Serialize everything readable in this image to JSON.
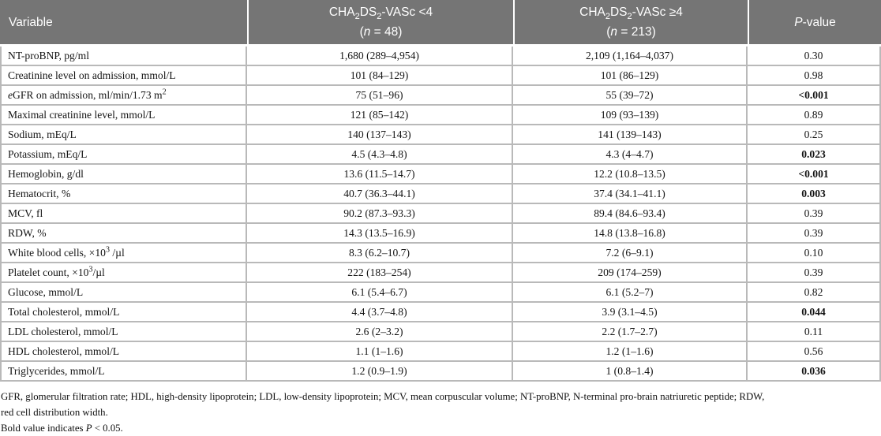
{
  "table": {
    "header": {
      "variable": "Variable",
      "group1": {
        "t1": "CHA",
        "s1": "2",
        "t2": "DS",
        "s2": "2",
        "t3": "-VASc <4",
        "n_open": "(",
        "n_sym": "n",
        "n_rest": " = 48)"
      },
      "group2": {
        "t1": "CHA",
        "s1": "2",
        "t2": "DS",
        "s2": "2",
        "t3": "-VASc ≥4",
        "n_open": "(",
        "n_sym": "n",
        "n_rest": " = 213)"
      },
      "pvalue": {
        "p": "P",
        "rest": "-value"
      }
    },
    "rows": [
      {
        "label": [
          {
            "t": "NT-proBNP, pg/ml"
          }
        ],
        "group_lt4": "1,680 (289–4,954)",
        "group_ge4": "2,109 (1,164–4,037)",
        "p": "0.30",
        "p_bold": false
      },
      {
        "label": [
          {
            "t": "Creatinine level on admission, mmol/L"
          }
        ],
        "group_lt4": "101 (84–129)",
        "group_ge4": "101 (86–129)",
        "p": "0.98",
        "p_bold": false
      },
      {
        "label": [
          {
            "t": "e",
            "i": true
          },
          {
            "t": "GFR on admission, ml/min/1.73 m"
          },
          {
            "t": "2",
            "sup": true
          }
        ],
        "group_lt4": "75 (51–96)",
        "group_ge4": "55 (39–72)",
        "p": "<0.001",
        "p_bold": true
      },
      {
        "label": [
          {
            "t": "Maximal creatinine level, mmol/L"
          }
        ],
        "group_lt4": "121 (85–142)",
        "group_ge4": "109 (93–139)",
        "p": "0.89",
        "p_bold": false
      },
      {
        "label": [
          {
            "t": "Sodium, mEq/L"
          }
        ],
        "group_lt4": "140 (137–143)",
        "group_ge4": "141 (139–143)",
        "p": "0.25",
        "p_bold": false
      },
      {
        "label": [
          {
            "t": "Potassium, mEq/L"
          }
        ],
        "group_lt4": "4.5 (4.3–4.8)",
        "group_ge4": "4.3 (4–4.7)",
        "p": "0.023",
        "p_bold": true
      },
      {
        "label": [
          {
            "t": "Hemoglobin, g/dl"
          }
        ],
        "group_lt4": "13.6 (11.5–14.7)",
        "group_ge4": "12.2 (10.8–13.5)",
        "p": "<0.001",
        "p_bold": true
      },
      {
        "label": [
          {
            "t": "Hematocrit, %"
          }
        ],
        "group_lt4": "40.7 (36.3–44.1)",
        "group_ge4": "37.4 (34.1–41.1)",
        "p": "0.003",
        "p_bold": true
      },
      {
        "label": [
          {
            "t": "MCV, fl"
          }
        ],
        "group_lt4": "90.2 (87.3–93.3)",
        "group_ge4": "89.4 (84.6–93.4)",
        "p": "0.39",
        "p_bold": false
      },
      {
        "label": [
          {
            "t": "RDW, %"
          }
        ],
        "group_lt4": "14.3 (13.5–16.9)",
        "group_ge4": "14.8 (13.8–16.8)",
        "p": "0.39",
        "p_bold": false
      },
      {
        "label": [
          {
            "t": "White blood cells, ×10"
          },
          {
            "t": "3",
            "sup": true
          },
          {
            "t": " /µl"
          }
        ],
        "group_lt4": "8.3 (6.2–10.7)",
        "group_ge4": "7.2 (6–9.1)",
        "p": "0.10",
        "p_bold": false
      },
      {
        "label": [
          {
            "t": "Platelet count, ×10"
          },
          {
            "t": "3",
            "sup": true
          },
          {
            "t": "/µl"
          }
        ],
        "group_lt4": "222 (183–254)",
        "group_ge4": "209 (174–259)",
        "p": "0.39",
        "p_bold": false
      },
      {
        "label": [
          {
            "t": "Glucose, mmol/L"
          }
        ],
        "group_lt4": "6.1 (5.4–6.7)",
        "group_ge4": "6.1 (5.2–7)",
        "p": "0.82",
        "p_bold": false
      },
      {
        "label": [
          {
            "t": "Total cholesterol, mmol/L"
          }
        ],
        "group_lt4": "4.4 (3.7–4.8)",
        "group_ge4": "3.9 (3.1–4.5)",
        "p": "0.044",
        "p_bold": true
      },
      {
        "label": [
          {
            "t": "LDL cholesterol, mmol/L"
          }
        ],
        "group_lt4": "2.6 (2–3.2)",
        "group_ge4": "2.2 (1.7–2.7)",
        "p": "0.11",
        "p_bold": false
      },
      {
        "label": [
          {
            "t": "HDL cholesterol, mmol/L"
          }
        ],
        "group_lt4": "1.1 (1–1.6)",
        "group_ge4": "1.2 (1–1.6)",
        "p": "0.56",
        "p_bold": false
      },
      {
        "label": [
          {
            "t": "Triglycerides, mmol/L"
          }
        ],
        "group_lt4": "1.2 (0.9–1.9)",
        "group_ge4": "1 (0.8–1.4)",
        "p": "0.036",
        "p_bold": true
      }
    ]
  },
  "footnotes": {
    "abbrev_line1": "GFR, glomerular filtration rate; HDL, high-density lipoprotein; LDL, low-density lipoprotein; MCV, mean corpuscular volume; NT-proBNP, N-terminal pro-brain natriuretic peptide; RDW,",
    "abbrev_line2": "red cell distribution width.",
    "bold_note_pre": "Bold value indicates ",
    "bold_note_p": "P",
    "bold_note_post": " < 0.05."
  }
}
